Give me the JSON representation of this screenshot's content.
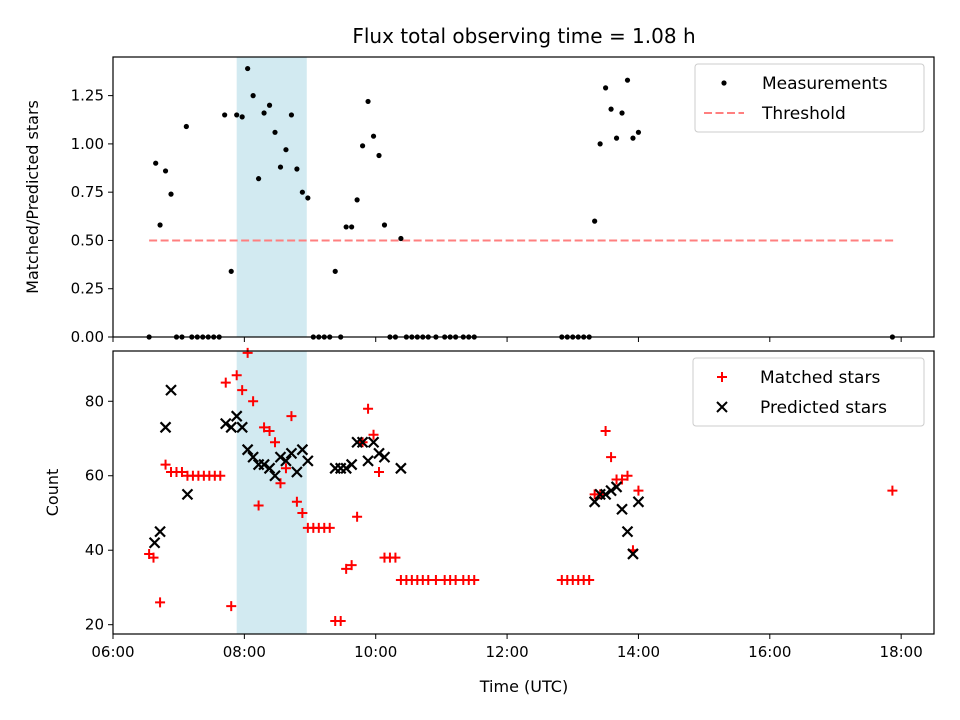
{
  "title": "Flux total observing time = 1.08 h",
  "xlabel": "Time (UTC)",
  "x_ticks": [
    "06:00",
    "08:00",
    "10:00",
    "12:00",
    "14:00",
    "16:00",
    "18:00"
  ],
  "colors": {
    "measurements": "#000000",
    "threshold": "#ff7f7f",
    "matched": "#ff0000",
    "predicted": "#000000",
    "highlight": "#add8e6"
  },
  "chart_data": [
    {
      "type": "scatter",
      "ylabel": "Matched/Predicted stars",
      "xlim": [
        "06:00",
        "18:30"
      ],
      "ylim": [
        0,
        1.45
      ],
      "y_ticks": [
        "0.00",
        "0.25",
        "0.50",
        "0.75",
        "1.00",
        "1.25"
      ],
      "highlight_span": [
        "07:53",
        "08:57"
      ],
      "legend": [
        "Measurements",
        "Threshold"
      ],
      "legend_position": "top-right",
      "threshold": {
        "name": "Threshold",
        "y": 0.5,
        "x_range": [
          "06:33",
          "17:55"
        ]
      },
      "measurements": [
        [
          "06:33",
          0
        ],
        [
          "06:39",
          0.9
        ],
        [
          "06:43",
          0.58
        ],
        [
          "06:48",
          0.86
        ],
        [
          "06:53",
          0.74
        ],
        [
          "06:58",
          0
        ],
        [
          "07:03",
          0
        ],
        [
          "07:07",
          1.09
        ],
        [
          "07:12",
          0
        ],
        [
          "07:17",
          0
        ],
        [
          "07:22",
          0
        ],
        [
          "07:27",
          0
        ],
        [
          "07:32",
          0
        ],
        [
          "07:37",
          0
        ],
        [
          "07:42",
          1.15
        ],
        [
          "07:48",
          0.34
        ],
        [
          "07:53",
          1.15
        ],
        [
          "07:58",
          1.14
        ],
        [
          "08:03",
          1.39
        ],
        [
          "08:08",
          1.25
        ],
        [
          "08:13",
          0.82
        ],
        [
          "08:18",
          1.16
        ],
        [
          "08:23",
          1.2
        ],
        [
          "08:28",
          1.06
        ],
        [
          "08:33",
          0.88
        ],
        [
          "08:38",
          0.97
        ],
        [
          "08:43",
          1.15
        ],
        [
          "08:48",
          0.87
        ],
        [
          "08:53",
          0.75
        ],
        [
          "08:58",
          0.72
        ],
        [
          "09:03",
          0
        ],
        [
          "09:08",
          0
        ],
        [
          "09:13",
          0
        ],
        [
          "09:18",
          0
        ],
        [
          "09:23",
          0.34
        ],
        [
          "09:28",
          0
        ],
        [
          "09:33",
          0.57
        ],
        [
          "09:38",
          0.57
        ],
        [
          "09:43",
          0.71
        ],
        [
          "09:48",
          0.99
        ],
        [
          "09:53",
          1.22
        ],
        [
          "09:58",
          1.04
        ],
        [
          "10:03",
          0.94
        ],
        [
          "10:08",
          0.58
        ],
        [
          "10:13",
          0
        ],
        [
          "10:18",
          0
        ],
        [
          "10:23",
          0.51
        ],
        [
          "10:28",
          0
        ],
        [
          "10:33",
          0
        ],
        [
          "10:38",
          0
        ],
        [
          "10:43",
          0
        ],
        [
          "10:48",
          0
        ],
        [
          "10:55",
          0
        ],
        [
          "11:03",
          0
        ],
        [
          "11:08",
          0
        ],
        [
          "11:13",
          0
        ],
        [
          "11:20",
          0
        ],
        [
          "11:25",
          0
        ],
        [
          "11:30",
          0
        ],
        [
          "12:50",
          0
        ],
        [
          "12:55",
          0
        ],
        [
          "13:00",
          0
        ],
        [
          "13:05",
          0
        ],
        [
          "13:10",
          0
        ],
        [
          "13:15",
          0
        ],
        [
          "13:20",
          0.6
        ],
        [
          "13:25",
          1.0
        ],
        [
          "13:30",
          1.29
        ],
        [
          "13:35",
          1.18
        ],
        [
          "13:40",
          1.03
        ],
        [
          "13:45",
          1.16
        ],
        [
          "13:50",
          1.33
        ],
        [
          "13:55",
          1.03
        ],
        [
          "14:00",
          1.06
        ],
        [
          "17:52",
          0
        ]
      ]
    },
    {
      "type": "scatter",
      "ylabel": "Count",
      "xlim": [
        "06:00",
        "18:30"
      ],
      "ylim": [
        17.5,
        93.5
      ],
      "y_ticks": [
        "20",
        "40",
        "60",
        "80"
      ],
      "highlight_span": [
        "07:53",
        "08:57"
      ],
      "legend": [
        "Matched stars",
        "Predicted stars"
      ],
      "legend_position": "top-right",
      "series": [
        {
          "name": "Matched stars",
          "marker": "plus",
          "points": [
            [
              "06:33",
              39
            ],
            [
              "06:37",
              38
            ],
            [
              "06:43",
              26
            ],
            [
              "06:48",
              63
            ],
            [
              "06:53",
              61
            ],
            [
              "06:58",
              61
            ],
            [
              "07:03",
              61
            ],
            [
              "07:08",
              60
            ],
            [
              "07:13",
              60
            ],
            [
              "07:18",
              60
            ],
            [
              "07:23",
              60
            ],
            [
              "07:28",
              60
            ],
            [
              "07:33",
              60
            ],
            [
              "07:38",
              60
            ],
            [
              "07:43",
              85
            ],
            [
              "07:48",
              25
            ],
            [
              "07:53",
              87
            ],
            [
              "07:58",
              83
            ],
            [
              "08:03",
              93
            ],
            [
              "08:08",
              80
            ],
            [
              "08:13",
              52
            ],
            [
              "08:18",
              73
            ],
            [
              "08:23",
              72
            ],
            [
              "08:28",
              69
            ],
            [
              "08:33",
              58
            ],
            [
              "08:38",
              62
            ],
            [
              "08:43",
              76
            ],
            [
              "08:48",
              53
            ],
            [
              "08:53",
              50
            ],
            [
              "08:58",
              46
            ],
            [
              "09:03",
              46
            ],
            [
              "09:08",
              46
            ],
            [
              "09:13",
              46
            ],
            [
              "09:18",
              46
            ],
            [
              "09:23",
              21
            ],
            [
              "09:28",
              21
            ],
            [
              "09:33",
              35
            ],
            [
              "09:38",
              36
            ],
            [
              "09:43",
              49
            ],
            [
              "09:48",
              69
            ],
            [
              "09:53",
              78
            ],
            [
              "09:58",
              71
            ],
            [
              "10:03",
              61
            ],
            [
              "10:08",
              38
            ],
            [
              "10:13",
              38
            ],
            [
              "10:18",
              38
            ],
            [
              "10:23",
              32
            ],
            [
              "10:28",
              32
            ],
            [
              "10:33",
              32
            ],
            [
              "10:38",
              32
            ],
            [
              "10:43",
              32
            ],
            [
              "10:48",
              32
            ],
            [
              "10:55",
              32
            ],
            [
              "11:03",
              32
            ],
            [
              "11:08",
              32
            ],
            [
              "11:13",
              32
            ],
            [
              "11:20",
              32
            ],
            [
              "11:25",
              32
            ],
            [
              "11:30",
              32
            ],
            [
              "12:50",
              32
            ],
            [
              "12:55",
              32
            ],
            [
              "13:00",
              32
            ],
            [
              "13:05",
              32
            ],
            [
              "13:10",
              32
            ],
            [
              "13:15",
              32
            ],
            [
              "13:20",
              55
            ],
            [
              "13:25",
              55
            ],
            [
              "13:30",
              72
            ],
            [
              "13:35",
              65
            ],
            [
              "13:40",
              59
            ],
            [
              "13:45",
              59
            ],
            [
              "13:50",
              60
            ],
            [
              "13:55",
              40
            ],
            [
              "14:00",
              56
            ],
            [
              "17:52",
              56
            ]
          ]
        },
        {
          "name": "Predicted stars",
          "marker": "x",
          "points": [
            [
              "06:38",
              42
            ],
            [
              "06:43",
              45
            ],
            [
              "06:48",
              73
            ],
            [
              "06:53",
              83
            ],
            [
              "07:08",
              55
            ],
            [
              "07:43",
              74
            ],
            [
              "07:48",
              73
            ],
            [
              "07:53",
              76
            ],
            [
              "07:58",
              73
            ],
            [
              "08:03",
              67
            ],
            [
              "08:08",
              65
            ],
            [
              "08:13",
              63
            ],
            [
              "08:18",
              63
            ],
            [
              "08:23",
              62
            ],
            [
              "08:28",
              60
            ],
            [
              "08:33",
              65
            ],
            [
              "08:38",
              64
            ],
            [
              "08:43",
              66
            ],
            [
              "08:48",
              61
            ],
            [
              "08:53",
              67
            ],
            [
              "08:58",
              64
            ],
            [
              "09:23",
              62
            ],
            [
              "09:28",
              62
            ],
            [
              "09:33",
              62
            ],
            [
              "09:38",
              63
            ],
            [
              "09:43",
              69
            ],
            [
              "09:48",
              69
            ],
            [
              "09:53",
              64
            ],
            [
              "09:58",
              69
            ],
            [
              "10:03",
              66
            ],
            [
              "10:08",
              65
            ],
            [
              "10:23",
              62
            ],
            [
              "13:20",
              53
            ],
            [
              "13:25",
              55
            ],
            [
              "13:30",
              55
            ],
            [
              "13:35",
              56
            ],
            [
              "13:40",
              57
            ],
            [
              "13:45",
              51
            ],
            [
              "13:50",
              45
            ],
            [
              "13:55",
              39
            ],
            [
              "14:00",
              53
            ]
          ]
        }
      ]
    }
  ]
}
